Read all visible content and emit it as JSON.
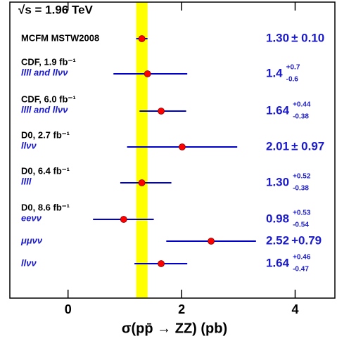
{
  "chart_data": {
    "type": "forest",
    "title": "√s = 1.96 TeV",
    "x_label": "σ(pp̄ → ZZ) (pb)",
    "categories": [
      "MCFM MSTW2008",
      "CDF, 1.9 fb⁻¹",
      "CDF, 6.0 fb⁻¹",
      "D0, 2.7 fb⁻¹",
      "D0, 6.4 fb⁻¹",
      "D0, 8.6 fb⁻¹",
      null,
      null
    ],
    "channels": [
      null,
      "llll and llνν",
      "llll and llνν",
      "llνν",
      "llll",
      "eeνν",
      "μμνν",
      "llνν"
    ],
    "values": [
      1.3,
      1.4,
      1.64,
      2.01,
      1.3,
      0.98,
      2.52,
      1.64
    ],
    "value_labels": [
      "1.30",
      "1.4",
      "1.64",
      "2.01",
      "1.30",
      "0.98",
      "2.52",
      "1.64"
    ],
    "errors_plus": [
      0.1,
      0.7,
      0.44,
      0.97,
      0.52,
      0.53,
      0.79,
      0.46
    ],
    "errors_minus": [
      -0.1,
      -0.6,
      -0.38,
      -0.97,
      -0.38,
      -0.54,
      -0.79,
      -0.47
    ],
    "error_plus_labels": [
      "± 0.10",
      "+0.7",
      "+0.44",
      "± 0.97",
      "+0.52",
      "+0.53",
      "+0.79",
      "+0.46"
    ],
    "error_minus_labels": [
      null,
      "-0.6",
      null,
      null,
      null,
      null,
      null,
      null
    ],
    "xlim": [
      -1,
      4.7
    ],
    "xticks": [
      0,
      2,
      4
    ],
    "point_color": "#ff0000",
    "bar_color": "#0000cc",
    "label_color": "#1a1acc",
    "band_color": "#ffff00"
  }
}
